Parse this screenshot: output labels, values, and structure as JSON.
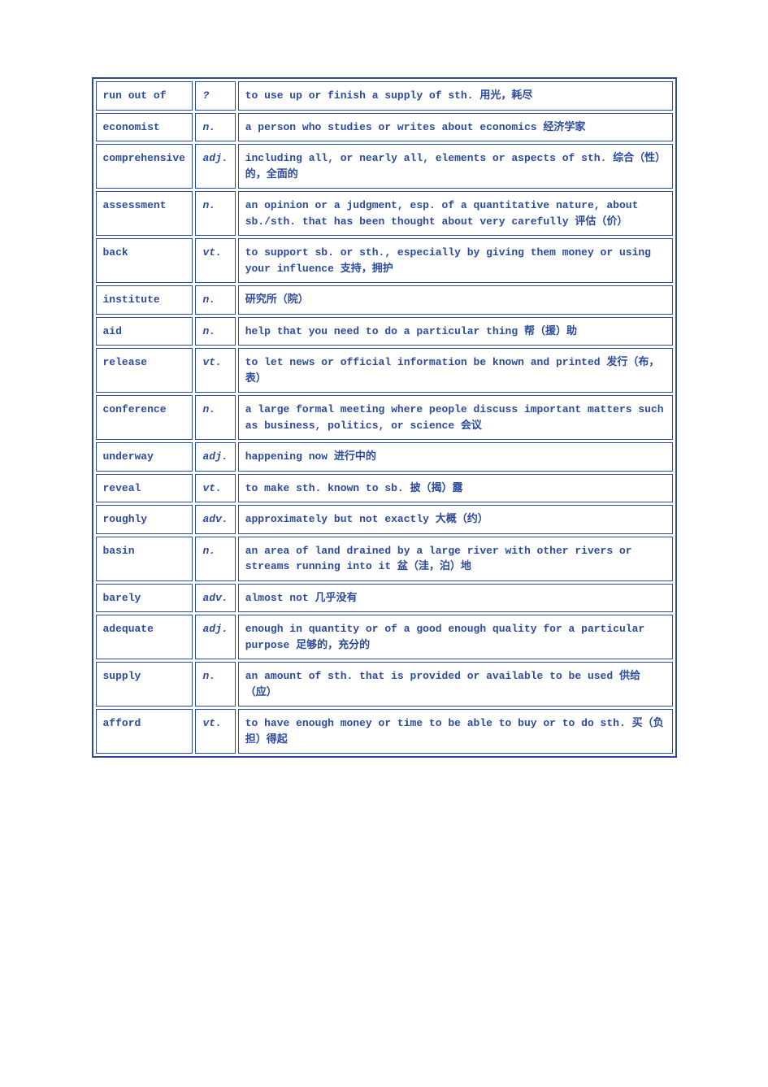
{
  "table": {
    "border_color": "#2c4a9e",
    "text_color": "#2c4a9e",
    "background_color": "#ffffff",
    "font_family": "Courier New, SimSun, monospace",
    "font_size": 13,
    "font_weight": "bold",
    "rows": [
      {
        "word": "run out of",
        "pos": "?",
        "def": "to use up or finish a supply of sth. 用光，耗尽"
      },
      {
        "word": "economist",
        "pos": "n.",
        "def": "a person who studies or writes about economics 经济学家"
      },
      {
        "word": "comprehensive",
        "pos": "adj.",
        "def": "including all, or nearly all, elements or aspects of sth. 综合（性）的，全面的"
      },
      {
        "word": "assessment",
        "pos": "n.",
        "def": "an opinion or a judgment, esp. of a quantitative nature, about sb./sth. that has been thought about very carefully 评估（价）"
      },
      {
        "word": "back",
        "pos": "vt.",
        "def": "to support sb. or sth., especially by giving them money or using your influence  支持，拥护"
      },
      {
        "word": "institute",
        "pos": "n.",
        "def": "研究所（院）"
      },
      {
        "word": "aid",
        "pos": "n.",
        "def": "help that you need to do a particular thing 帮（援）助"
      },
      {
        "word": "release",
        "pos": "vt.",
        "def": "to let news or official information be known and printed 发行（布，表）"
      },
      {
        "word": "conference",
        "pos": "n.",
        "def": "a large formal meeting where people discuss important matters such as business, politics, or science 会议"
      },
      {
        "word": "underway",
        "pos": "adj.",
        "def": "happening now 进行中的"
      },
      {
        "word": "reveal",
        "pos": "vt.",
        "def": "to make sth. known to sb. 披（揭）露"
      },
      {
        "word": "roughly",
        "pos": "adv.",
        "def": "approximately but not exactly 大概（约）"
      },
      {
        "word": "basin",
        "pos": "n.",
        "def": "an area of land drained by a large river with other rivers or streams running into it 盆（洼，泊）地"
      },
      {
        "word": "barely",
        "pos": "adv.",
        "def": "almost not 几乎没有"
      },
      {
        "word": "adequate",
        "pos": "adj.",
        "def": "enough in quantity or of a good enough quality for a particular purpose 足够的，充分的"
      },
      {
        "word": "supply",
        "pos": "n.",
        "def": "an amount of sth. that is provided or available to be used 供给（应）"
      },
      {
        "word": "afford",
        "pos": "vt.",
        "def": "to have enough money or time to be able to buy or to do sth. 买（负担）得起"
      }
    ]
  }
}
